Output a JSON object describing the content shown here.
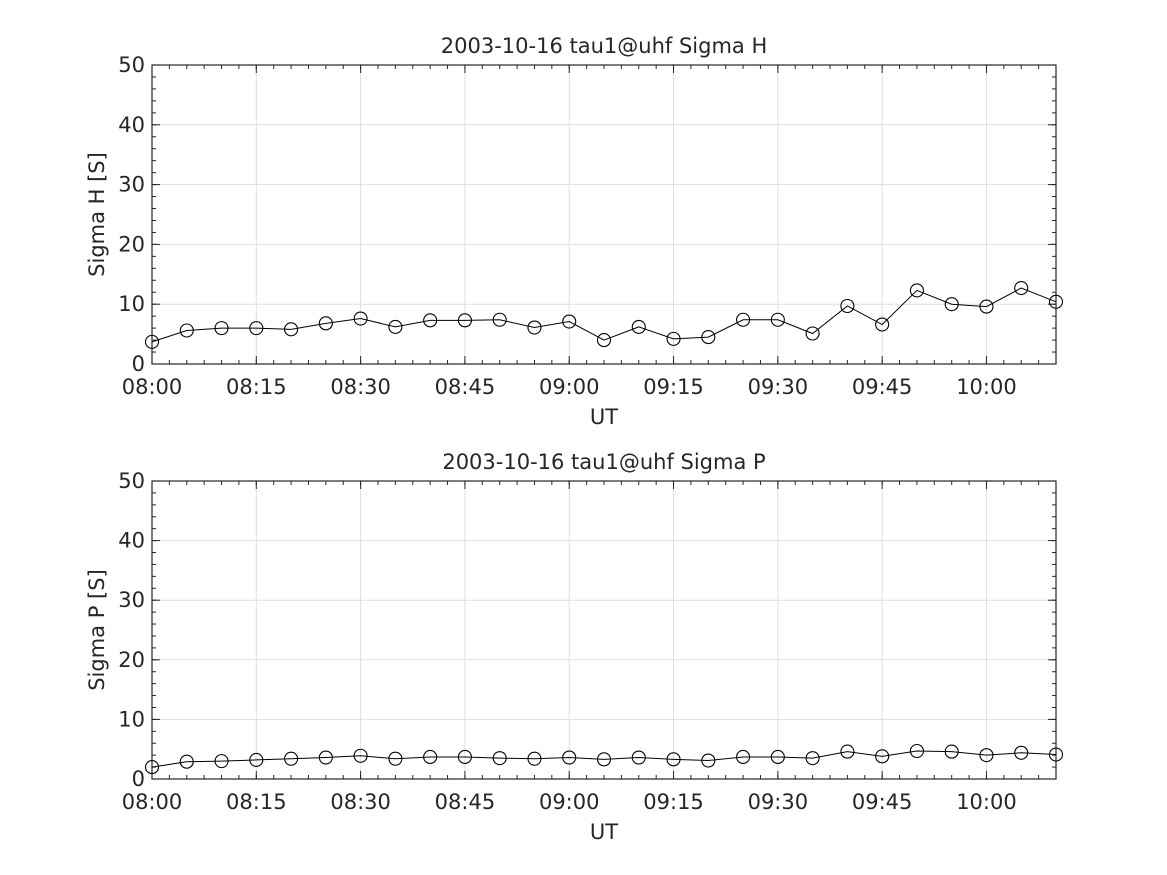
{
  "chart_data": [
    {
      "type": "line",
      "title": "2003-10-16  tau1@uhf Sigma H",
      "xlabel": "UT",
      "ylabel": "Sigma H [S]",
      "xlim": [
        "08:00",
        "10:10"
      ],
      "ylim": [
        0,
        50
      ],
      "xticks": [
        "08:00",
        "08:15",
        "08:30",
        "08:45",
        "09:00",
        "09:15",
        "09:30",
        "09:45",
        "10:00"
      ],
      "yticks": [
        0,
        10,
        20,
        30,
        40,
        50
      ],
      "grid": true,
      "x": [
        "08:00",
        "08:05",
        "08:10",
        "08:15",
        "08:20",
        "08:25",
        "08:30",
        "08:35",
        "08:40",
        "08:45",
        "08:50",
        "08:55",
        "09:00",
        "09:05",
        "09:10",
        "09:15",
        "09:20",
        "09:25",
        "09:30",
        "09:35",
        "09:40",
        "09:45",
        "09:50",
        "09:55",
        "10:00",
        "10:05",
        "10:10"
      ],
      "series": [
        {
          "marker": "circle",
          "color": "#000000",
          "values": [
            3.7,
            5.6,
            6.0,
            6.0,
            5.8,
            6.8,
            7.6,
            6.2,
            7.3,
            7.3,
            7.4,
            6.1,
            7.1,
            4.0,
            6.2,
            4.2,
            4.5,
            7.4,
            7.4,
            5.1,
            9.7,
            6.6,
            12.3,
            10.0,
            9.6,
            12.7,
            10.4
          ]
        }
      ]
    },
    {
      "type": "line",
      "title": "2003-10-16  tau1@uhf Sigma P",
      "xlabel": "UT",
      "ylabel": "Sigma P [S]",
      "xlim": [
        "08:00",
        "10:10"
      ],
      "ylim": [
        0,
        50
      ],
      "xticks": [
        "08:00",
        "08:15",
        "08:30",
        "08:45",
        "09:00",
        "09:15",
        "09:30",
        "09:45",
        "10:00"
      ],
      "yticks": [
        0,
        10,
        20,
        30,
        40,
        50
      ],
      "grid": true,
      "x": [
        "08:00",
        "08:05",
        "08:10",
        "08:15",
        "08:20",
        "08:25",
        "08:30",
        "08:35",
        "08:40",
        "08:45",
        "08:50",
        "08:55",
        "09:00",
        "09:05",
        "09:10",
        "09:15",
        "09:20",
        "09:25",
        "09:30",
        "09:35",
        "09:40",
        "09:45",
        "09:50",
        "09:55",
        "10:00",
        "10:05",
        "10:10"
      ],
      "series": [
        {
          "marker": "circle",
          "color": "#000000",
          "values": [
            2.0,
            2.9,
            3.0,
            3.2,
            3.4,
            3.6,
            3.9,
            3.4,
            3.7,
            3.7,
            3.5,
            3.4,
            3.6,
            3.3,
            3.6,
            3.3,
            3.1,
            3.7,
            3.7,
            3.5,
            4.6,
            3.8,
            4.7,
            4.6,
            4.0,
            4.4,
            4.1
          ]
        }
      ]
    }
  ]
}
